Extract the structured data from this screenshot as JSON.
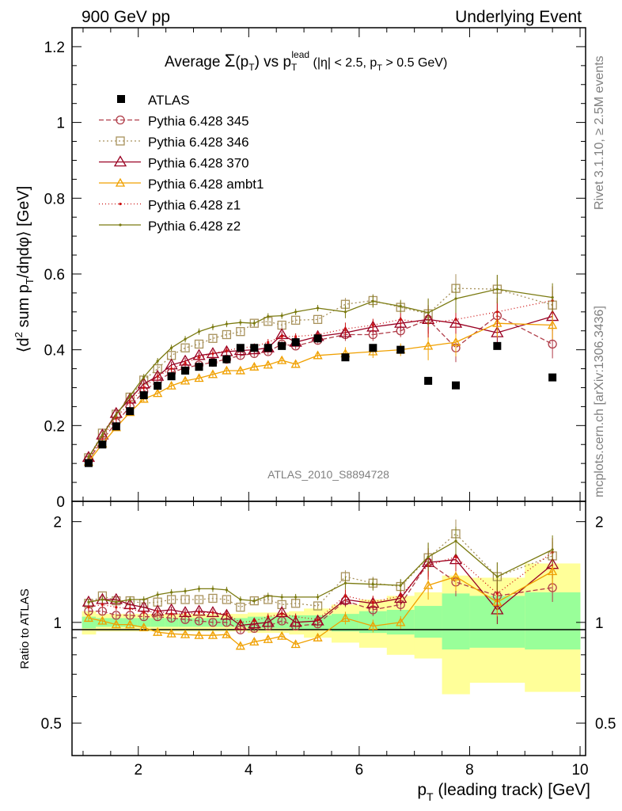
{
  "header": {
    "left": "900 GeV pp",
    "right": "Underlying Event"
  },
  "side_labels": {
    "rivet": "Rivet 3.1.10, ≥ 2.5M events",
    "mcplots": "mcplots.cern.ch [arXiv:1306.3436]"
  },
  "watermark": "ATLAS_2010_S8894728",
  "colors": {
    "atlas": "#000000",
    "p345": "#b03c48",
    "p346": "#a8925c",
    "p370": "#990022",
    "ambt1": "#f0a000",
    "z1": "#cc1111",
    "z2": "#7a7a10",
    "band_inner": "#99ff99",
    "band_outer": "#ffff99"
  },
  "chart_data": [
    {
      "type": "line",
      "title_parts": {
        "pre": "Average ",
        "sigma": "Σ",
        "arg": "(p",
        "arg_sub": "T",
        "arg_close": ")",
        "vs": " vs p",
        "vs_sub": "T",
        "vs_sup": "lead",
        "cut1": " (|η| < 2.5, p",
        "cut_sub": "T",
        "cut2": " > 0.5 GeV)"
      },
      "ylabel_parts": {
        "a": "⟨d",
        "a_sup": "2",
        "b": " sum p",
        "b_sub": "T",
        "c": "/dηdφ⟩ [GeV]"
      },
      "xlim": [
        0.8,
        10.1
      ],
      "ylim": [
        0,
        1.25
      ],
      "yticks": [
        0,
        0.2,
        0.4,
        0.6,
        0.8,
        1,
        1.2
      ],
      "ytick_labels": [
        "0",
        "0.2",
        "0.4",
        "0.6",
        "0.8",
        "1",
        "1.2"
      ],
      "legend_position": "top-left",
      "x": [
        1.1,
        1.35,
        1.6,
        1.85,
        2.1,
        2.35,
        2.6,
        2.85,
        3.1,
        3.35,
        3.6,
        3.85,
        4.1,
        4.35,
        4.6,
        4.85,
        5.25,
        5.75,
        6.25,
        6.75,
        7.25,
        7.75,
        8.5,
        9.5
      ],
      "atlas": {
        "name": "ATLAS",
        "x": [
          1.1,
          1.35,
          1.6,
          1.85,
          2.1,
          2.35,
          2.6,
          2.85,
          3.1,
          3.35,
          3.6,
          3.85,
          4.1,
          4.35,
          4.6,
          4.85,
          5.25,
          5.75,
          6.25,
          6.75,
          7.25,
          7.75,
          8.5,
          9.5
        ],
        "y": [
          0.101,
          0.15,
          0.198,
          0.238,
          0.28,
          0.305,
          0.33,
          0.345,
          0.355,
          0.366,
          0.375,
          0.405,
          0.405,
          0.405,
          0.41,
          0.42,
          0.43,
          0.38,
          0.405,
          0.4,
          0.318,
          0.306,
          0.41,
          0.327
        ]
      },
      "series": [
        {
          "name": "Pythia 6.428 345",
          "key": "p345",
          "marker": "circle",
          "dash": "6,3",
          "y": [
            0.109,
            0.162,
            0.208,
            0.25,
            0.29,
            0.318,
            0.34,
            0.352,
            0.36,
            0.367,
            0.375,
            0.385,
            0.39,
            0.395,
            0.415,
            0.41,
            0.425,
            0.44,
            0.44,
            0.45,
            0.48,
            0.405,
            0.49,
            0.415
          ]
        },
        {
          "name": "Pythia 6.428 346",
          "key": "p346",
          "marker": "square",
          "dash": "2,3",
          "y": [
            0.115,
            0.18,
            0.23,
            0.275,
            0.32,
            0.35,
            0.385,
            0.405,
            0.415,
            0.43,
            0.44,
            0.448,
            0.47,
            0.475,
            0.465,
            0.478,
            0.48,
            0.52,
            0.53,
            0.512,
            0.495,
            0.562,
            0.56,
            0.518
          ]
        },
        {
          "name": "Pythia 6.428 370",
          "key": "p370",
          "marker": "triangle",
          "dash": "",
          "y": [
            0.116,
            0.175,
            0.232,
            0.27,
            0.31,
            0.33,
            0.36,
            0.37,
            0.385,
            0.39,
            0.395,
            0.398,
            0.4,
            0.405,
            0.44,
            0.42,
            0.435,
            0.445,
            0.46,
            0.47,
            0.48,
            0.47,
            0.445,
            0.488
          ]
        },
        {
          "name": "Pythia 6.428 ambt1",
          "key": "ambt1",
          "marker": "triangle-small",
          "dash": "",
          "y": [
            0.104,
            0.152,
            0.195,
            0.235,
            0.27,
            0.285,
            0.305,
            0.318,
            0.325,
            0.335,
            0.345,
            0.345,
            0.355,
            0.36,
            0.372,
            0.362,
            0.385,
            0.39,
            0.395,
            0.4,
            0.41,
            0.42,
            0.47,
            0.465
          ]
        },
        {
          "name": "Pythia 6.428 z1",
          "key": "z1",
          "marker": "dot",
          "dash": "1,3",
          "y": [
            0.112,
            0.17,
            0.22,
            0.262,
            0.3,
            0.33,
            0.35,
            0.365,
            0.38,
            0.39,
            0.398,
            0.405,
            0.408,
            0.42,
            0.435,
            0.435,
            0.44,
            0.455,
            0.465,
            0.48,
            0.47,
            0.48,
            0.5,
            0.53
          ]
        },
        {
          "name": "Pythia 6.428 z2",
          "key": "z2",
          "marker": "dot",
          "dash": "",
          "y": [
            0.116,
            0.175,
            0.228,
            0.278,
            0.328,
            0.37,
            0.405,
            0.428,
            0.448,
            0.46,
            0.468,
            0.472,
            0.47,
            0.488,
            0.49,
            0.5,
            0.51,
            0.5,
            0.528,
            0.515,
            0.498,
            0.535,
            0.56,
            0.538
          ]
        }
      ]
    },
    {
      "type": "line",
      "ylabel": "Ratio to ATLAS",
      "xlabel_parts": {
        "a": "p",
        "a_sub": "T",
        "b": " (leading track) [GeV]"
      },
      "xlim": [
        0.8,
        10.1
      ],
      "ylim": [
        0.4,
        2.3
      ],
      "xticks": [
        2,
        4,
        6,
        8,
        10
      ],
      "xtick_labels": [
        "2",
        "4",
        "6",
        "8",
        "10"
      ],
      "yticks": [
        0.5,
        1,
        2
      ],
      "ytick_labels": [
        "0.5",
        "1",
        "2"
      ],
      "reference_line": 1,
      "bins": [
        [
          0.98,
          1.23
        ],
        [
          1.23,
          1.48
        ],
        [
          1.48,
          1.73
        ],
        [
          1.73,
          1.98
        ],
        [
          1.98,
          2.23
        ],
        [
          2.23,
          2.48
        ],
        [
          2.48,
          2.73
        ],
        [
          2.73,
          2.98
        ],
        [
          2.98,
          3.23
        ],
        [
          3.23,
          3.48
        ],
        [
          3.48,
          3.73
        ],
        [
          3.73,
          3.98
        ],
        [
          3.98,
          4.23
        ],
        [
          4.23,
          4.48
        ],
        [
          4.48,
          4.73
        ],
        [
          4.73,
          5.0
        ],
        [
          5.0,
          5.5
        ],
        [
          5.5,
          6.0
        ],
        [
          6.0,
          6.5
        ],
        [
          6.5,
          7.0
        ],
        [
          7.0,
          7.5
        ],
        [
          7.5,
          8.0
        ],
        [
          8.0,
          9.0
        ],
        [
          9.0,
          10.0
        ]
      ],
      "band_inner": [
        [
          0.96,
          1.04
        ],
        [
          0.97,
          1.03
        ],
        [
          0.97,
          1.03
        ],
        [
          0.97,
          1.03
        ],
        [
          0.97,
          1.03
        ],
        [
          0.97,
          1.03
        ],
        [
          0.97,
          1.03
        ],
        [
          0.97,
          1.03
        ],
        [
          0.97,
          1.03
        ],
        [
          0.97,
          1.03
        ],
        [
          0.97,
          1.03
        ],
        [
          0.97,
          1.03
        ],
        [
          0.96,
          1.04
        ],
        [
          0.96,
          1.04
        ],
        [
          0.96,
          1.04
        ],
        [
          0.95,
          1.05
        ],
        [
          0.95,
          1.05
        ],
        [
          0.94,
          1.06
        ],
        [
          0.93,
          1.08
        ],
        [
          0.92,
          1.09
        ],
        [
          0.9,
          1.12
        ],
        [
          0.83,
          1.22
        ],
        [
          0.84,
          1.2
        ],
        [
          0.83,
          1.23
        ]
      ],
      "band_outer": [
        [
          0.92,
          1.08
        ],
        [
          0.94,
          1.06
        ],
        [
          0.94,
          1.06
        ],
        [
          0.94,
          1.06
        ],
        [
          0.94,
          1.06
        ],
        [
          0.94,
          1.06
        ],
        [
          0.94,
          1.06
        ],
        [
          0.94,
          1.06
        ],
        [
          0.94,
          1.06
        ],
        [
          0.94,
          1.06
        ],
        [
          0.94,
          1.06
        ],
        [
          0.94,
          1.06
        ],
        [
          0.93,
          1.07
        ],
        [
          0.93,
          1.07
        ],
        [
          0.93,
          1.07
        ],
        [
          0.92,
          1.08
        ],
        [
          0.9,
          1.1
        ],
        [
          0.87,
          1.13
        ],
        [
          0.84,
          1.17
        ],
        [
          0.8,
          1.2
        ],
        [
          0.78,
          1.23
        ],
        [
          0.61,
          1.38
        ],
        [
          0.66,
          1.36
        ],
        [
          0.62,
          1.5
        ]
      ],
      "series": [
        {
          "key": "p345",
          "y": [
            1.08,
            1.08,
            1.05,
            1.05,
            1.04,
            1.04,
            1.03,
            1.02,
            1.01,
            1.0,
            1.0,
            0.95,
            0.96,
            0.975,
            1.01,
            0.975,
            0.99,
            1.16,
            1.09,
            1.13,
            1.51,
            1.32,
            1.2,
            1.27
          ]
        },
        {
          "key": "p346",
          "y": [
            1.14,
            1.2,
            1.16,
            1.16,
            1.14,
            1.15,
            1.17,
            1.17,
            1.17,
            1.18,
            1.17,
            1.11,
            1.16,
            1.17,
            1.13,
            1.14,
            1.12,
            1.37,
            1.31,
            1.28,
            1.56,
            1.84,
            1.37,
            1.58
          ]
        },
        {
          "key": "p370",
          "y": [
            1.15,
            1.17,
            1.17,
            1.13,
            1.11,
            1.08,
            1.09,
            1.07,
            1.08,
            1.07,
            1.05,
            0.98,
            0.99,
            1.0,
            1.07,
            1.0,
            1.01,
            1.17,
            1.14,
            1.18,
            1.51,
            1.54,
            1.09,
            1.49
          ]
        },
        {
          "key": "ambt1",
          "y": [
            1.03,
            1.01,
            0.985,
            0.985,
            0.965,
            0.935,
            0.925,
            0.92,
            0.915,
            0.915,
            0.92,
            0.85,
            0.875,
            0.89,
            0.91,
            0.86,
            0.9,
            1.03,
            0.975,
            1.0,
            1.29,
            1.37,
            1.15,
            1.42
          ]
        },
        {
          "key": "z1",
          "y": [
            1.11,
            1.13,
            1.11,
            1.1,
            1.07,
            1.08,
            1.06,
            1.06,
            1.07,
            1.07,
            1.06,
            1.0,
            1.01,
            1.04,
            1.06,
            1.04,
            1.02,
            1.2,
            1.15,
            1.2,
            1.48,
            1.57,
            1.22,
            1.62
          ]
        },
        {
          "key": "z2",
          "y": [
            1.15,
            1.17,
            1.15,
            1.17,
            1.17,
            1.21,
            1.23,
            1.24,
            1.26,
            1.26,
            1.25,
            1.17,
            1.16,
            1.2,
            1.19,
            1.19,
            1.19,
            1.31,
            1.3,
            1.29,
            1.57,
            1.75,
            1.37,
            1.65
          ]
        }
      ]
    }
  ]
}
